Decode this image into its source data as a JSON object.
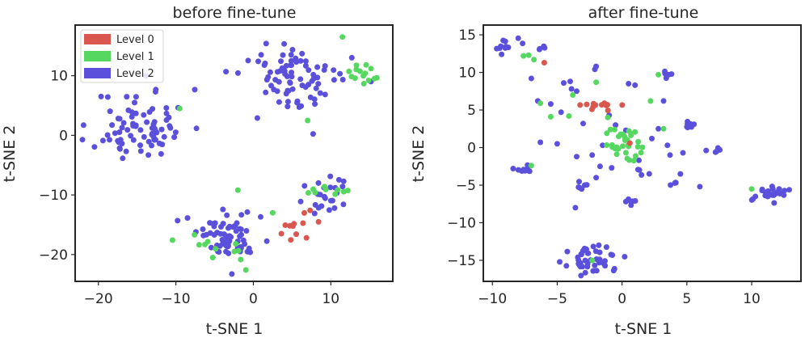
{
  "chart_data": [
    {
      "type": "scatter",
      "title": "before fine-tune",
      "xlabel": "t-SNE 1",
      "ylabel": "t-SNE 2",
      "xlim": [
        -23,
        18
      ],
      "ylim": [
        -24.5,
        18.5
      ],
      "xticks": [
        -20,
        -10,
        0,
        10
      ],
      "yticks": [
        -20,
        -10,
        0,
        10
      ],
      "xtick_labels": [
        "−20",
        "−10",
        "0",
        "10"
      ],
      "ytick_labels": [
        "−20",
        "−10",
        "0",
        "10"
      ],
      "grid": false,
      "legend": {
        "placement": "top-left",
        "entries": [
          {
            "label": "Level 0",
            "color": "#d9574e"
          },
          {
            "label": "Level 1",
            "color": "#56d860"
          },
          {
            "label": "Level 2",
            "color": "#5b50db"
          }
        ]
      },
      "clusters": [
        {
          "level": 2,
          "cx": -14.5,
          "cy": 1.5,
          "sx": 3.0,
          "sy": 3.1,
          "n": 80,
          "seed": 11
        },
        {
          "level": 2,
          "cx": 5.5,
          "cy": 9.5,
          "sx": 3.4,
          "sy": 3.0,
          "n": 80,
          "seed": 12
        },
        {
          "level": 1,
          "cx": 14.3,
          "cy": 10.2,
          "sx": 1.2,
          "sy": 1.1,
          "n": 14,
          "seed": 13
        },
        {
          "level": 2,
          "cx": -2.5,
          "cy": -16.8,
          "sx": 2.5,
          "sy": 2.0,
          "n": 65,
          "seed": 14
        },
        {
          "level": 1,
          "cx": -3.5,
          "cy": -18.5,
          "sx": 2.2,
          "sy": 1.8,
          "n": 12,
          "seed": 15
        },
        {
          "level": 2,
          "cx": 9.5,
          "cy": -10.2,
          "sx": 1.6,
          "sy": 1.8,
          "n": 24,
          "seed": 16
        },
        {
          "level": 1,
          "cx": 9.8,
          "cy": -8.8,
          "sx": 1.5,
          "sy": 1.0,
          "n": 9,
          "seed": 17
        },
        {
          "level": 0,
          "cx": 5.0,
          "cy": -15.5,
          "sx": 1.3,
          "sy": 1.7,
          "n": 12,
          "seed": 18
        }
      ],
      "points": [
        {
          "x": -9.5,
          "y": 4.5,
          "level": 1
        },
        {
          "x": 7.0,
          "y": 2.5,
          "level": 1
        },
        {
          "x": 11.5,
          "y": 16.5,
          "level": 1
        },
        {
          "x": -2.0,
          "y": -9.2,
          "level": 1
        },
        {
          "x": 2.5,
          "y": -13.0,
          "level": 1
        }
      ]
    },
    {
      "type": "scatter",
      "title": "after fine-tune",
      "xlabel": "t-SNE 1",
      "ylabel": "t-SNE 2",
      "xlim": [
        -10.7,
        13.8
      ],
      "ylim": [
        -17.8,
        16.3
      ],
      "xticks": [
        -10,
        -5,
        0,
        5,
        10
      ],
      "yticks": [
        -15,
        -10,
        -5,
        0,
        5,
        10,
        15
      ],
      "xtick_labels": [
        "−10",
        "−5",
        "0",
        "5",
        "10"
      ],
      "ytick_labels": [
        "−15",
        "−10",
        "−5",
        "0",
        "5",
        "10",
        "15"
      ],
      "grid": false,
      "clusters": [
        {
          "level": 1,
          "cx": 0.3,
          "cy": 0.3,
          "sx": 0.9,
          "sy": 1.2,
          "n": 32,
          "seed": 21
        },
        {
          "level": 0,
          "cx": -2.0,
          "cy": 5.6,
          "sx": 0.9,
          "sy": 0.35,
          "n": 12,
          "seed": 22
        },
        {
          "level": 2,
          "cx": -2.1,
          "cy": -15.0,
          "sx": 1.0,
          "sy": 0.8,
          "n": 45,
          "seed": 23
        },
        {
          "level": 2,
          "cx": 11.3,
          "cy": -6.2,
          "sx": 0.8,
          "sy": 0.5,
          "n": 26,
          "seed": 24
        },
        {
          "level": 2,
          "cx": -8.7,
          "cy": 13.3,
          "sx": 0.6,
          "sy": 0.45,
          "n": 12,
          "seed": 25
        },
        {
          "level": 2,
          "cx": -7.5,
          "cy": -2.7,
          "sx": 0.45,
          "sy": 0.4,
          "n": 11,
          "seed": 26
        },
        {
          "level": 2,
          "cx": 5.1,
          "cy": 3.0,
          "sx": 0.4,
          "sy": 0.3,
          "n": 8,
          "seed": 27
        },
        {
          "level": 2,
          "cx": 7.3,
          "cy": -0.3,
          "sx": 0.35,
          "sy": 0.25,
          "n": 5,
          "seed": 28
        },
        {
          "level": 2,
          "cx": 3.4,
          "cy": 9.8,
          "sx": 0.3,
          "sy": 0.35,
          "n": 6,
          "seed": 29
        },
        {
          "level": 2,
          "cx": -6.3,
          "cy": 13.2,
          "sx": 0.2,
          "sy": 0.25,
          "n": 4,
          "seed": 30
        },
        {
          "level": 2,
          "cx": 0.6,
          "cy": -7.3,
          "sx": 0.3,
          "sy": 0.2,
          "n": 6,
          "seed": 31
        },
        {
          "level": 2,
          "cx": -3.0,
          "cy": -5.1,
          "sx": 0.4,
          "sy": 0.3,
          "n": 6,
          "seed": 32
        },
        {
          "level": 2,
          "cx": 4.2,
          "cy": -4.9,
          "sx": 0.3,
          "sy": 0.25,
          "n": 4,
          "seed": 33
        },
        {
          "level": 2,
          "cx": 1.5,
          "cy": -3.5,
          "sx": 0.25,
          "sy": 0.3,
          "n": 4,
          "seed": 34
        }
      ],
      "points": [
        {
          "x": -6.0,
          "y": 11.3,
          "level": 0
        },
        {
          "x": 0.6,
          "y": 0.6,
          "level": 0
        },
        {
          "x": -4.5,
          "y": 8.6,
          "level": 2
        },
        {
          "x": -4.0,
          "y": 8.8,
          "level": 2
        },
        {
          "x": -2.0,
          "y": 10.8,
          "level": 2
        },
        {
          "x": -2.1,
          "y": 10.4,
          "level": 2
        },
        {
          "x": 0.5,
          "y": 8.5,
          "level": 2
        },
        {
          "x": 1.0,
          "y": 8.3,
          "level": 2
        },
        {
          "x": -6.5,
          "y": 6.2,
          "level": 2
        },
        {
          "x": -5.5,
          "y": 5.8,
          "level": 2
        },
        {
          "x": -3.9,
          "y": 7.8,
          "level": 2
        },
        {
          "x": -3.5,
          "y": 7.5,
          "level": 2
        },
        {
          "x": -4.7,
          "y": 4.7,
          "level": 2
        },
        {
          "x": -3.0,
          "y": 3.2,
          "level": 2
        },
        {
          "x": -1.0,
          "y": 4.3,
          "level": 2
        },
        {
          "x": -0.5,
          "y": 3.0,
          "level": 2
        },
        {
          "x": 0.3,
          "y": 2.3,
          "level": 2
        },
        {
          "x": 3.2,
          "y": 6.2,
          "level": 2
        },
        {
          "x": 2.8,
          "y": 2.5,
          "level": 2
        },
        {
          "x": 2.3,
          "y": 1.2,
          "level": 2
        },
        {
          "x": 3.5,
          "y": 0.3,
          "level": 2
        },
        {
          "x": 3.7,
          "y": -1.0,
          "level": 2
        },
        {
          "x": 4.7,
          "y": -0.7,
          "level": 2
        },
        {
          "x": 6.0,
          "y": -5.2,
          "level": 2
        },
        {
          "x": -6.3,
          "y": 0.7,
          "level": 2
        },
        {
          "x": -5.0,
          "y": 0.5,
          "level": 2
        },
        {
          "x": -3.5,
          "y": -1.2,
          "level": 2
        },
        {
          "x": -2.3,
          "y": -1.0,
          "level": 2
        },
        {
          "x": -1.5,
          "y": 0.3,
          "level": 2
        },
        {
          "x": -1.7,
          "y": -2.5,
          "level": 2
        },
        {
          "x": -0.8,
          "y": -2.7,
          "level": 2
        },
        {
          "x": -2.0,
          "y": -4.0,
          "level": 2
        },
        {
          "x": -3.6,
          "y": -8.0,
          "level": 2
        },
        {
          "x": 1.3,
          "y": -1.7,
          "level": 2
        },
        {
          "x": -7.0,
          "y": 9.2,
          "level": 2
        },
        {
          "x": 4.5,
          "y": -3.5,
          "level": 2
        },
        {
          "x": -7.2,
          "y": 12.3,
          "level": 1
        },
        {
          "x": -6.8,
          "y": 11.7,
          "level": 1
        },
        {
          "x": -7.6,
          "y": 12.2,
          "level": 1
        },
        {
          "x": -7.0,
          "y": -2.4,
          "level": 1
        },
        {
          "x": -5.5,
          "y": 4.1,
          "level": 1
        },
        {
          "x": -4.1,
          "y": 4.2,
          "level": 1
        },
        {
          "x": -6.3,
          "y": 5.9,
          "level": 1
        },
        {
          "x": -3.8,
          "y": 7.0,
          "level": 1
        },
        {
          "x": -1.1,
          "y": 4.0,
          "level": 1
        },
        {
          "x": 2.8,
          "y": 9.7,
          "level": 1
        },
        {
          "x": 2.2,
          "y": 6.2,
          "level": 1
        },
        {
          "x": 3.2,
          "y": 2.5,
          "level": 1
        },
        {
          "x": 10.0,
          "y": -5.5,
          "level": 1
        },
        {
          "x": -2.3,
          "y": -15.0,
          "level": 1
        },
        {
          "x": -2.0,
          "y": 8.7,
          "level": 1
        }
      ]
    }
  ]
}
